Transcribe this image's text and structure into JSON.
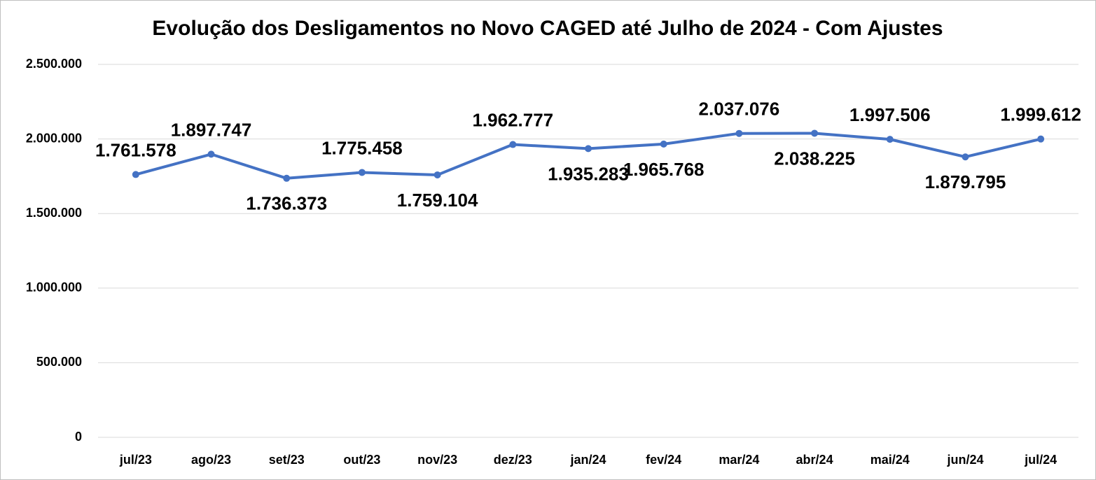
{
  "chart_data": {
    "type": "line",
    "title": "Evolução dos Desligamentos no Novo CAGED até Julho de 2024 - Com Ajustes",
    "categories": [
      "jul/23",
      "ago/23",
      "set/23",
      "out/23",
      "nov/23",
      "dez/23",
      "jan/24",
      "fev/24",
      "mar/24",
      "abr/24",
      "mai/24",
      "jun/24",
      "jul/24"
    ],
    "values": [
      1761578,
      1897747,
      1736373,
      1775458,
      1759104,
      1962777,
      1935283,
      1965768,
      2037076,
      2038225,
      1997506,
      1879795,
      1999612
    ],
    "value_labels": [
      "1.761.578",
      "1.897.747",
      "1.736.373",
      "1.775.458",
      "1.759.104",
      "1.962.777",
      "1.935.283",
      "1.965.768",
      "2.037.076",
      "2.038.225",
      "1.997.506",
      "1.879.795",
      "1.999.612"
    ],
    "color": "#4472c4",
    "ylim": [
      0,
      2500000
    ],
    "yticks": [
      0,
      {
        "value": 500000,
        "label": "500.000"
      },
      {
        "value": 1000000,
        "label": "1.000.000"
      },
      {
        "value": 1500000,
        "label": "1.500.000"
      },
      {
        "value": 2000000,
        "label": "2.000.000"
      },
      {
        "value": 2500000,
        "label": "2.500.000"
      }
    ],
    "grid": true
  }
}
